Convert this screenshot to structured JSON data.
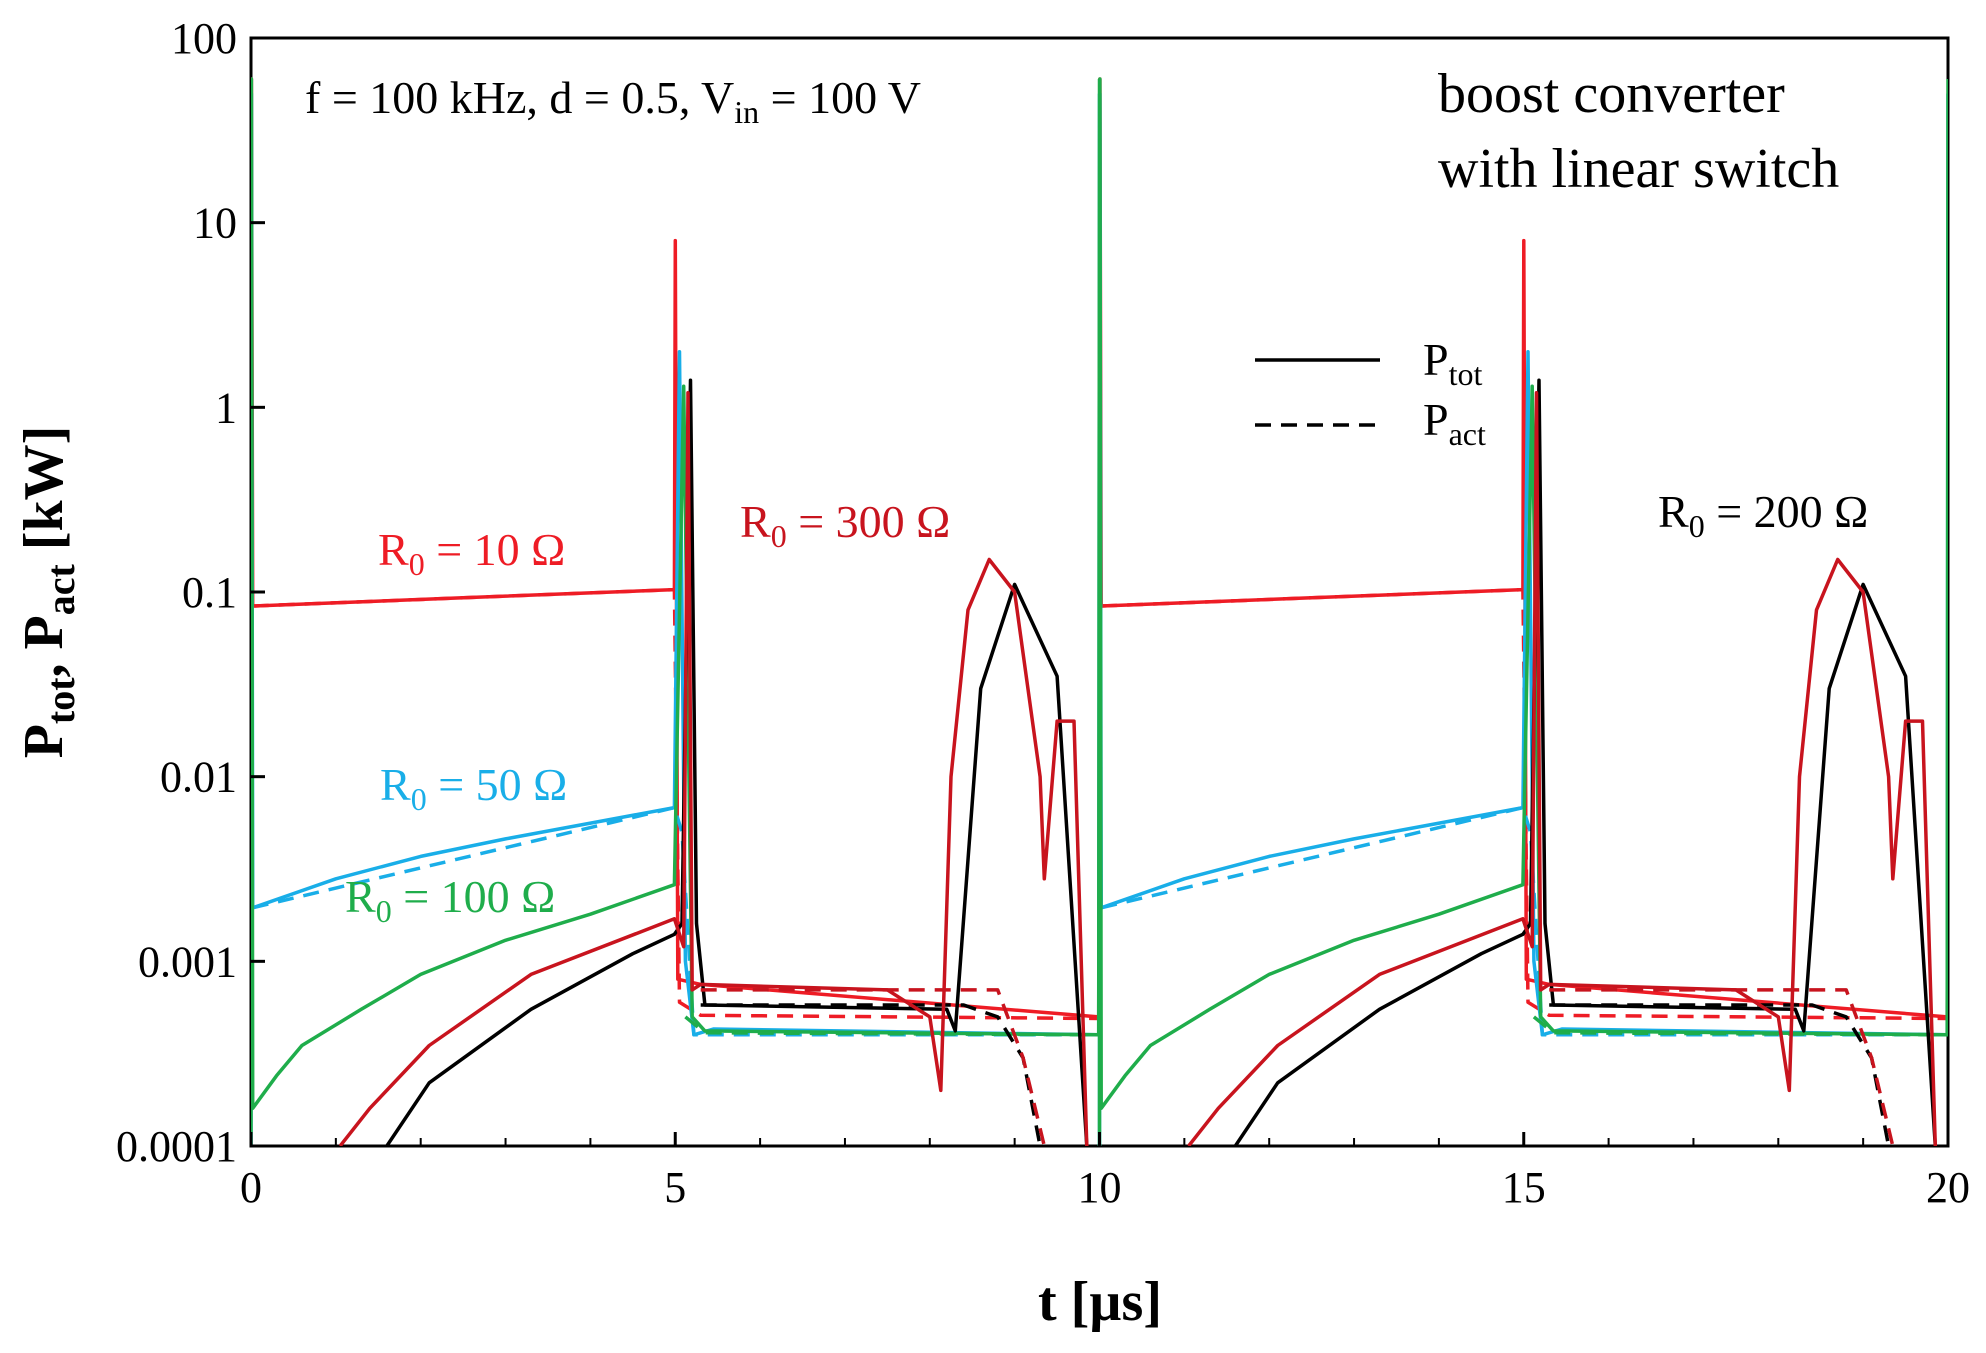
{
  "chart_data": {
    "type": "line",
    "title": "",
    "xlabel": "t [µs]",
    "ylabel": {
      "main": "P",
      "sub1": "tot",
      "sep": ", P",
      "sub2": "act",
      "unit": " [kW]"
    },
    "y_scale": "log",
    "xlim": [
      0,
      20
    ],
    "ylim": [
      0.0001,
      100
    ],
    "x_ticks": [
      0,
      5,
      10,
      15,
      20
    ],
    "x_tick_labels": [
      "0",
      "5",
      "10",
      "15",
      "20"
    ],
    "y_ticks": [
      0.0001,
      0.001,
      0.01,
      0.1,
      1,
      10,
      100
    ],
    "y_tick_labels": [
      "0.0001",
      "0.001",
      "0.01",
      "0.1",
      "1",
      "10",
      "100"
    ],
    "grid": false,
    "legend": {
      "placement": "top-right",
      "entries": [
        {
          "main": "P",
          "sub": "tot",
          "style": "solid"
        },
        {
          "main": "P",
          "sub": "act",
          "style": "dashed"
        }
      ]
    },
    "annotations": {
      "conditions": {
        "part1": "f = 100 kHz, d = 0.5, V",
        "sub": "in",
        "part2": " = 100 V"
      },
      "title_line1": "boost converter",
      "title_line2": "with linear switch",
      "r10": {
        "main": "R",
        "sub": "0",
        "rest": " = 10 Ω",
        "color": "#ee1c25"
      },
      "r50": {
        "main": "R",
        "sub": "0",
        "rest": " = 50 Ω",
        "color": "#19aee8"
      },
      "r100": {
        "main": "R",
        "sub": "0",
        "rest": " = 100 Ω",
        "color": "#1fad4b"
      },
      "r200": {
        "main": "R",
        "sub": "0",
        "rest": " = 200 Ω",
        "color": "#000000"
      },
      "r300": {
        "main": "R",
        "sub": "0",
        "rest": " = 300 Ω",
        "color": "#c8141e"
      }
    },
    "series": [
      {
        "name": "R0 = 10 Ω, Ptot",
        "color": "#ee1c25",
        "style": "solid",
        "period": true,
        "points": [
          [
            0,
            0.1
          ],
          [
            0.005,
            60
          ],
          [
            0.02,
            0.084
          ],
          [
            2.5,
            0.093
          ],
          [
            4.99,
            0.103
          ],
          [
            5.0,
            8
          ],
          [
            5.03,
            0.0008
          ],
          [
            5.3,
            0.00075
          ],
          [
            9.99,
            0.0005
          ],
          [
            10.0,
            0.1
          ]
        ]
      },
      {
        "name": "R0 = 10 Ω, Pact",
        "color": "#ee1c25",
        "style": "dashed",
        "period": true,
        "points": [
          [
            0.02,
            0.084
          ],
          [
            4.99,
            0.103
          ],
          [
            5.05,
            0.0006
          ],
          [
            5.3,
            0.00051
          ],
          [
            9.99,
            0.00049
          ]
        ]
      },
      {
        "name": "R0 = 50 Ω, Ptot",
        "color": "#19aee8",
        "style": "solid",
        "period": true,
        "points": [
          [
            0,
            0.0001
          ],
          [
            0.005,
            50
          ],
          [
            0.02,
            0.00195
          ],
          [
            1.0,
            0.0028
          ],
          [
            2.0,
            0.0037
          ],
          [
            3.0,
            0.0046
          ],
          [
            4.99,
            0.0068
          ],
          [
            5.05,
            2.0
          ],
          [
            5.12,
            0.001
          ],
          [
            5.22,
            0.0004
          ],
          [
            5.45,
            0.00043
          ],
          [
            9.99,
            0.0004
          ],
          [
            10.0,
            50
          ]
        ]
      },
      {
        "name": "R0 = 50 Ω, Pact",
        "color": "#19aee8",
        "style": "dashed",
        "period": true,
        "points": [
          [
            0.02,
            0.00195
          ],
          [
            4.99,
            0.0068
          ],
          [
            5.08,
            0.005
          ],
          [
            5.22,
            0.0004
          ],
          [
            9.99,
            0.0004
          ]
        ]
      },
      {
        "name": "R0 = 100 Ω, Ptot",
        "color": "#1fad4b",
        "style": "solid",
        "period": true,
        "points": [
          [
            0,
            0.0001
          ],
          [
            0.005,
            60
          ],
          [
            0.02,
            0.00016
          ],
          [
            0.3,
            0.00024
          ],
          [
            0.6,
            0.00035
          ],
          [
            1.3,
            0.00055
          ],
          [
            2.0,
            0.00085
          ],
          [
            3.0,
            0.0013
          ],
          [
            4.0,
            0.0018
          ],
          [
            4.99,
            0.0026
          ],
          [
            5.1,
            1.3
          ],
          [
            5.2,
            0.0005
          ],
          [
            5.35,
            0.00042
          ],
          [
            9.99,
            0.0004
          ],
          [
            10.0,
            60
          ]
        ]
      },
      {
        "name": "R0 = 100 Ω, Pact",
        "color": "#1fad4b",
        "style": "dashed",
        "period": true,
        "points": [
          [
            5.12,
            0.0005
          ],
          [
            5.35,
            0.00041
          ],
          [
            9.99,
            0.0004
          ]
        ]
      },
      {
        "name": "R0 = 200 Ω, Ptot",
        "color": "#000000",
        "style": "solid",
        "period": true,
        "points": [
          [
            1.6,
            0.0001
          ],
          [
            2.1,
            0.00022
          ],
          [
            3.3,
            0.00055
          ],
          [
            4.5,
            0.0011
          ],
          [
            4.99,
            0.0014
          ],
          [
            5.08,
            0.0016
          ],
          [
            5.18,
            1.4
          ],
          [
            5.25,
            0.0016
          ],
          [
            5.35,
            0.00058
          ],
          [
            8.2,
            0.00055
          ],
          [
            8.3,
            0.00042
          ],
          [
            8.6,
            0.03
          ],
          [
            9.0,
            0.11
          ],
          [
            9.5,
            0.035
          ],
          [
            9.85,
            0.0001
          ]
        ]
      },
      {
        "name": "R0 = 200 Ω, Pact",
        "color": "#000000",
        "style": "dashed",
        "period": true,
        "points": [
          [
            5.3,
            0.00058
          ],
          [
            8.4,
            0.00058
          ],
          [
            8.8,
            0.0005
          ],
          [
            9.1,
            0.0003
          ],
          [
            9.3,
            0.0001
          ]
        ]
      },
      {
        "name": "R0 = 300 Ω, Ptot",
        "color": "#c8141e",
        "style": "solid",
        "period": true,
        "points": [
          [
            1.05,
            0.0001
          ],
          [
            1.4,
            0.00016
          ],
          [
            2.1,
            0.00035
          ],
          [
            3.3,
            0.00085
          ],
          [
            4.99,
            0.0017
          ],
          [
            5.1,
            0.0012
          ],
          [
            5.15,
            1.2
          ],
          [
            5.2,
            0.0007
          ],
          [
            5.3,
            0.00075
          ],
          [
            7.5,
            0.0007
          ],
          [
            8.0,
            0.0005
          ],
          [
            8.13,
            0.0002
          ],
          [
            8.25,
            0.01
          ],
          [
            8.45,
            0.08
          ],
          [
            8.7,
            0.15
          ],
          [
            9.0,
            0.1
          ],
          [
            9.3,
            0.01
          ],
          [
            9.35,
            0.0028
          ],
          [
            9.5,
            0.02
          ],
          [
            9.7,
            0.02
          ],
          [
            9.85,
            0.0001
          ]
        ]
      },
      {
        "name": "R0 = 300 Ω, Pact",
        "color": "#c8141e",
        "style": "dashed",
        "period": true,
        "points": [
          [
            5.3,
            0.0007
          ],
          [
            8.8,
            0.0007
          ],
          [
            9.1,
            0.0003
          ],
          [
            9.35,
            0.0001
          ]
        ]
      }
    ]
  }
}
